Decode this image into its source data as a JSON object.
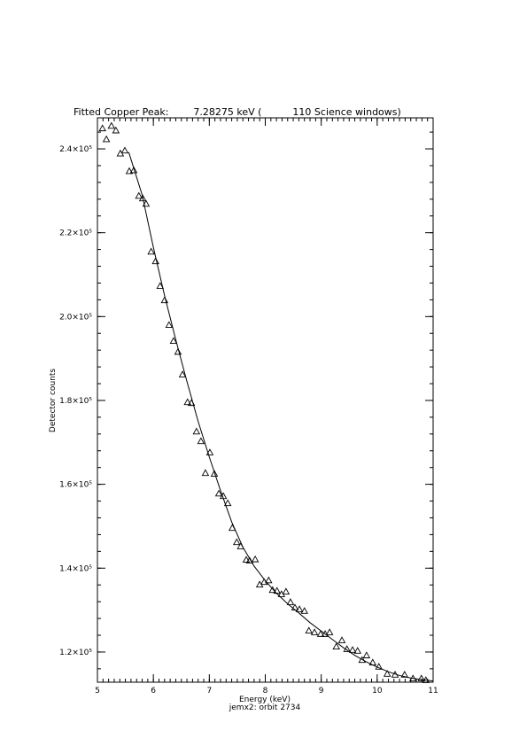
{
  "chart_data": {
    "type": "scatter",
    "title": "Fitted Copper Peak:        7.28275 keV (          110 Science windows)",
    "xlabel": "Energy (keV)",
    "ylabel": "Detector counts",
    "subtitle": "jemx2: orbit 2734",
    "marker": "triangle",
    "color": "#000000",
    "xlim": [
      5,
      11
    ],
    "ylim": [
      112800,
      247400
    ],
    "xticks": [
      5,
      6,
      7,
      8,
      9,
      10,
      11
    ],
    "yticks": [
      {
        "value": 120000,
        "label": "1.2×10⁵"
      },
      {
        "value": 140000,
        "label": "1.4×10⁵"
      },
      {
        "value": 160000,
        "label": "1.6×10⁵"
      },
      {
        "value": 180000,
        "label": "1.8×10⁵"
      },
      {
        "value": 200000,
        "label": "2.0×10⁵"
      },
      {
        "value": 220000,
        "label": "2.2×10⁵"
      },
      {
        "value": 240000,
        "label": "2.4×10⁵"
      }
    ],
    "x_minor_step": 0.1,
    "y_minor_step": 4000,
    "points": {
      "x": [
        5.09,
        5.16,
        5.25,
        5.33,
        5.41,
        5.49,
        5.57,
        5.65,
        5.74,
        5.81,
        5.87,
        5.96,
        6.04,
        6.12,
        6.2,
        6.28,
        6.36,
        6.44,
        6.52,
        6.61,
        6.68,
        6.77,
        6.85,
        6.93,
        7.01,
        7.09,
        7.17,
        7.25,
        7.33,
        7.41,
        7.49,
        7.56,
        7.66,
        7.72,
        7.82,
        7.9,
        7.98,
        8.06,
        8.13,
        8.21,
        8.29,
        8.37,
        8.45,
        8.53,
        8.61,
        8.7,
        8.78,
        8.88,
        8.99,
        9.07,
        9.15,
        9.27,
        9.37,
        9.46,
        9.56,
        9.65,
        9.73,
        9.81,
        9.92,
        10.03,
        10.18,
        10.32,
        10.49,
        10.64,
        10.79,
        10.87
      ],
      "values": [
        244900,
        242300,
        245500,
        244400,
        238900,
        239600,
        234700,
        234900,
        228800,
        228200,
        226900,
        215500,
        213200,
        207300,
        203900,
        198000,
        194200,
        191600,
        186200,
        179600,
        179400,
        172600,
        170300,
        162700,
        167600,
        162500,
        157800,
        157200,
        155500,
        149600,
        146200,
        145200,
        142000,
        141800,
        142100,
        136100,
        136700,
        137100,
        134800,
        134600,
        133800,
        134400,
        131900,
        130600,
        130200,
        129800,
        125100,
        124700,
        124300,
        124300,
        124700,
        121300,
        122800,
        120700,
        120500,
        120300,
        118100,
        119200,
        117500,
        116500,
        114800,
        114600,
        114600,
        113700,
        113700,
        113300
      ]
    },
    "fit": {
      "x": [
        5.56,
        5.8,
        6.0,
        6.2,
        6.4,
        6.6,
        6.8,
        7.0,
        7.2,
        7.4,
        7.6,
        7.8,
        8.0,
        8.2,
        8.4,
        8.6,
        8.8,
        9.0,
        9.2,
        9.4,
        9.6,
        9.8,
        10.0,
        10.2,
        10.4,
        10.6,
        10.8,
        11.0
      ],
      "values": [
        239200,
        229000,
        216500,
        205000,
        194500,
        184500,
        175000,
        166500,
        158500,
        151000,
        145000,
        140500,
        137000,
        134000,
        131500,
        129300,
        127000,
        125000,
        123000,
        121000,
        119200,
        117700,
        116400,
        115300,
        114400,
        113800,
        113400,
        113100
      ]
    }
  }
}
